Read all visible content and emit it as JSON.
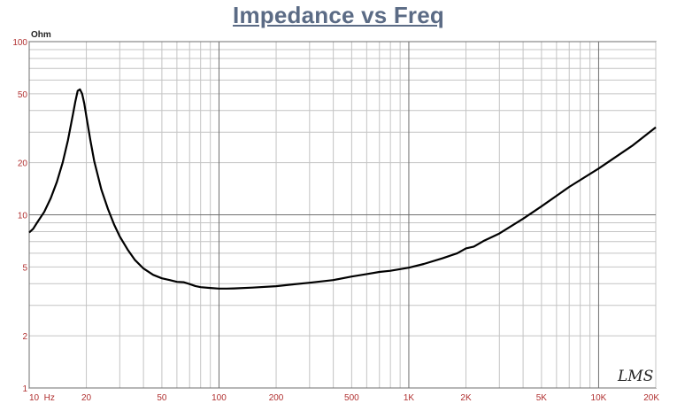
{
  "chart_data": {
    "type": "line",
    "title": "Impedance vs Freq",
    "ylabel": "Ohm",
    "xlabel": "",
    "x_scale": "log",
    "y_scale": "log",
    "xlim": [
      10,
      20000
    ],
    "ylim": [
      1,
      100
    ],
    "grid": true,
    "x_ticks": [
      {
        "value": 10,
        "label": "10  Hz"
      },
      {
        "value": 20,
        "label": "20"
      },
      {
        "value": 50,
        "label": "50"
      },
      {
        "value": 100,
        "label": "100"
      },
      {
        "value": 200,
        "label": "200"
      },
      {
        "value": 500,
        "label": "500"
      },
      {
        "value": 1000,
        "label": "1K"
      },
      {
        "value": 2000,
        "label": "2K"
      },
      {
        "value": 5000,
        "label": "5K"
      },
      {
        "value": 10000,
        "label": "10K"
      },
      {
        "value": 20000,
        "label": "20K"
      }
    ],
    "y_ticks": [
      {
        "value": 1,
        "label": "1"
      },
      {
        "value": 2,
        "label": "2"
      },
      {
        "value": 5,
        "label": "5"
      },
      {
        "value": 10,
        "label": "10"
      },
      {
        "value": 20,
        "label": "20"
      },
      {
        "value": 50,
        "label": "50"
      },
      {
        "value": 100,
        "label": "100"
      }
    ],
    "series": [
      {
        "color": "#000000",
        "x": [
          10,
          10.5,
          11,
          12,
          13,
          14,
          15,
          16,
          17,
          17.5,
          18,
          18.5,
          19,
          19.5,
          20,
          21,
          22,
          24,
          26,
          28,
          30,
          33,
          36,
          40,
          45,
          50,
          55,
          60,
          65,
          70,
          75,
          80,
          90,
          100,
          110,
          120,
          150,
          200,
          250,
          300,
          400,
          500,
          600,
          700,
          800,
          1000,
          1200,
          1500,
          1800,
          2000,
          2200,
          2500,
          3000,
          4000,
          5000,
          7000,
          10000,
          15000,
          20000
        ],
        "y": [
          7.9,
          8.3,
          9.0,
          10.4,
          12.5,
          15.5,
          20,
          27,
          38,
          45,
          52,
          53,
          50,
          44,
          37,
          27,
          20.5,
          14,
          10.8,
          8.8,
          7.5,
          6.3,
          5.5,
          4.9,
          4.5,
          4.3,
          4.2,
          4.1,
          4.08,
          3.98,
          3.88,
          3.82,
          3.78,
          3.75,
          3.75,
          3.76,
          3.8,
          3.87,
          3.97,
          4.05,
          4.2,
          4.4,
          4.55,
          4.68,
          4.75,
          4.95,
          5.2,
          5.6,
          6.0,
          6.4,
          6.55,
          7.1,
          7.8,
          9.5,
          11.2,
          14.5,
          18.5,
          25,
          32
        ]
      }
    ]
  },
  "logo_text": "LMS"
}
